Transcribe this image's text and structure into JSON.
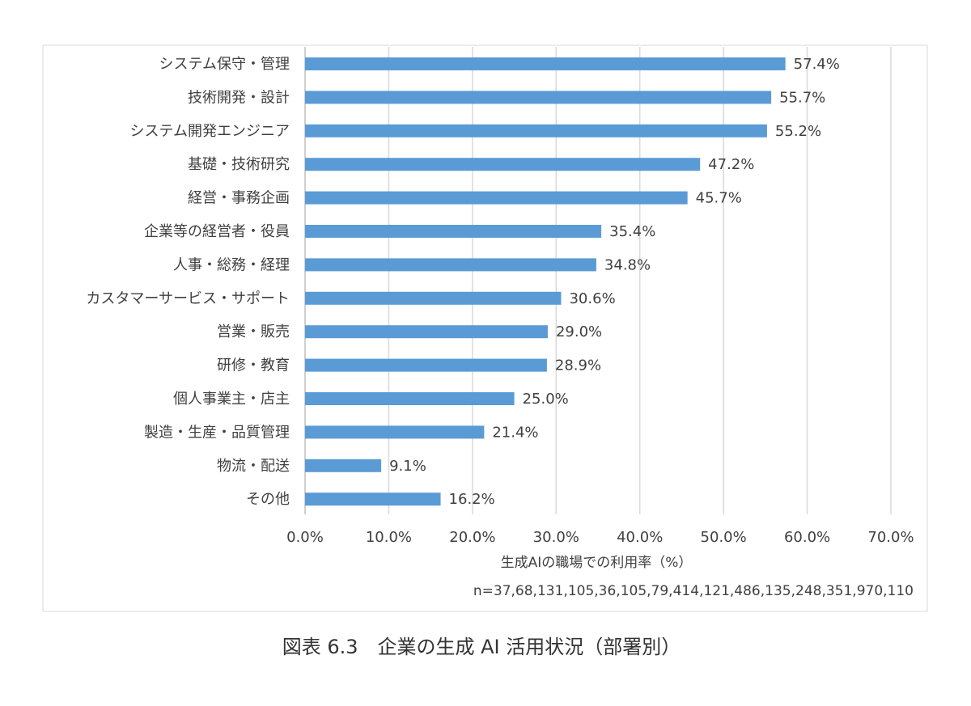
{
  "chart_data": {
    "type": "bar",
    "orientation": "horizontal",
    "categories": [
      "システム保守・管理",
      "技術開発・設計",
      "システム開発エンジニア",
      "基礎・技術研究",
      "経営・事務企画",
      "企業等の経営者・役員",
      "人事・総務・経理",
      "カスタマーサービス・サポート",
      "営業・販売",
      "研修・教育",
      "個人事業主・店主",
      "製造・生産・品質管理",
      "物流・配送",
      "その他"
    ],
    "values": [
      57.4,
      55.7,
      55.2,
      47.2,
      45.7,
      35.4,
      34.8,
      30.6,
      29.0,
      28.9,
      25.0,
      21.4,
      9.1,
      16.2
    ],
    "value_labels": [
      "57.4%",
      "55.7%",
      "55.2%",
      "47.2%",
      "45.7%",
      "35.4%",
      "34.8%",
      "30.6%",
      "29.0%",
      "28.9%",
      "25.0%",
      "21.4%",
      "9.1%",
      "16.2%"
    ],
    "xlim": [
      0,
      70
    ],
    "x_ticks": [
      0,
      10,
      20,
      30,
      40,
      50,
      60,
      70
    ],
    "x_tick_labels": [
      "0.0%",
      "10.0%",
      "20.0%",
      "30.0%",
      "40.0%",
      "50.0%",
      "60.0%",
      "70.0%"
    ],
    "xlabel": "生成AIの職場での利用率（%）",
    "note": "n=37,68,131,105,36,105,79,414,121,486,135,248,351,970,110",
    "grid": "vertical",
    "legend": "none",
    "bar_color": "#5b9bd5",
    "grid_color": "#d9d9d9"
  },
  "caption": "図表 6.3　企業の生成 AI 活用状況（部署別）"
}
